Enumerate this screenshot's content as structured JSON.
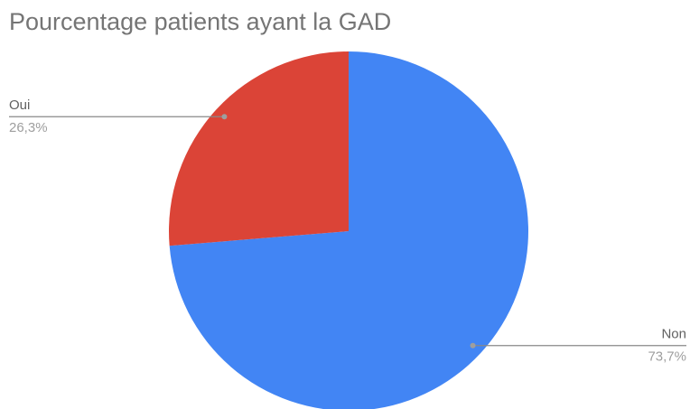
{
  "chart_data": {
    "type": "pie",
    "title": "Pourcentage patients ayant la GAD",
    "categories": [
      "Non",
      "Oui"
    ],
    "values": [
      73.7,
      26.3
    ],
    "value_labels": [
      "73,7%",
      "26,3%"
    ],
    "colors": [
      "#4285f4",
      "#db4437"
    ]
  }
}
